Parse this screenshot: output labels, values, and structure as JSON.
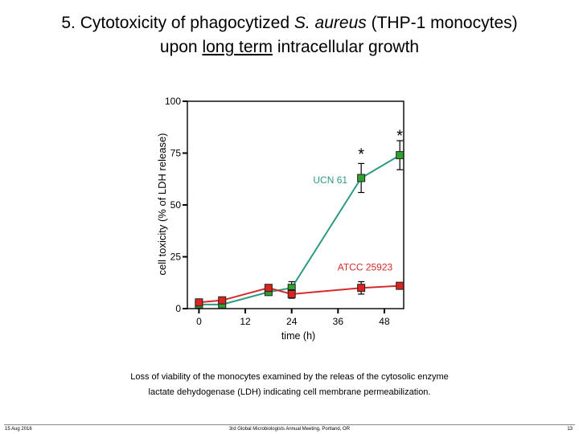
{
  "slide": {
    "title_prefix": "5. Cytotoxicity of phagocytized ",
    "title_italic": "S. aureus",
    "title_paren": " (",
    "title_suffix": "THP-1 monocytes)",
    "title_line2_pre": "upon ",
    "title_line2_underlined": "long term",
    "title_line2_post": " intracellular growth",
    "caption_line1": "Loss of viability of the monocytes examined by the releas of the cytosolic enzyme",
    "caption_line2": "lactate dehydogenase (LDH) indicating cell membrane permeabilization.",
    "footer_date": "15 Aug 2016",
    "footer_conference": "3rd Global Microbiologists Annual Meeting, Portland, OR",
    "footer_page": "13"
  },
  "chart_data": {
    "type": "line",
    "title": "",
    "xlabel": "time (h)",
    "ylabel": "cell toxicity (% of LDH release)",
    "xlim": [
      -3,
      53
    ],
    "ylim": [
      0,
      100
    ],
    "xticks": [
      0,
      12,
      24,
      36,
      48
    ],
    "yticks": [
      0,
      25,
      50,
      75,
      100
    ],
    "grid": false,
    "colors": {
      "UCN 61": "#2e9a82",
      "ATCC 25923": "#d42b2b"
    },
    "series": [
      {
        "name": "UCN 61",
        "color": "#2e9a82",
        "marker_fill": "#2fa12f",
        "x": [
          0,
          6,
          18,
          24,
          42,
          52
        ],
        "y": [
          2,
          2,
          8,
          10,
          63,
          74
        ],
        "err": [
          1,
          1,
          1,
          3,
          7,
          7
        ]
      },
      {
        "name": "ATCC 25923",
        "color": "#d42b2b",
        "marker_fill": "#dd2222",
        "x": [
          0,
          6,
          18,
          24,
          42,
          52
        ],
        "y": [
          3,
          4,
          10,
          7,
          10,
          11
        ],
        "err": [
          1,
          1,
          1,
          2,
          3,
          1
        ]
      }
    ],
    "annotations": [
      {
        "text": "*",
        "x": 42,
        "y": 75
      },
      {
        "text": "*",
        "x": 52,
        "y": 84
      },
      {
        "text": "UCN 61",
        "x": 34,
        "y": 62,
        "color": "#2e9a82"
      },
      {
        "text": "ATCC 25923",
        "x": 43,
        "y": 20,
        "color": "#d42b2b"
      }
    ]
  }
}
